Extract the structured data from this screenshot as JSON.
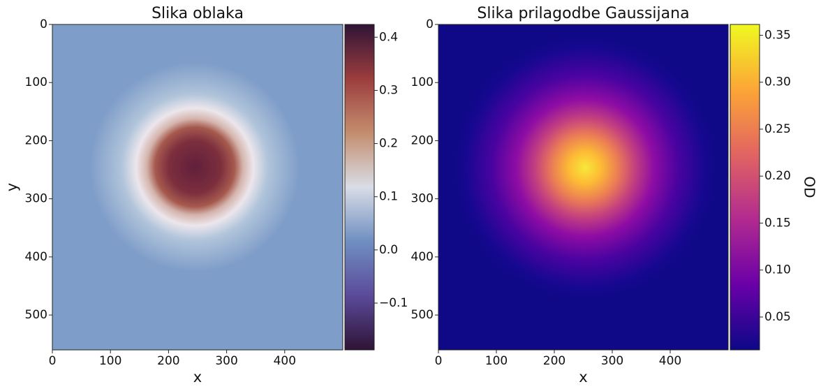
{
  "chart_data": [
    {
      "type": "heatmap",
      "title": "Slika oblaka",
      "xlabel": "x",
      "ylabel": "y",
      "xlim": [
        0,
        500
      ],
      "ylim": [
        560,
        0
      ],
      "xticks": [
        0,
        100,
        200,
        300,
        400
      ],
      "yticks": [
        0,
        100,
        200,
        300,
        400,
        500
      ],
      "colormap": "twilight_shifted",
      "colors": [
        "#2f1436",
        "#5b4a9a",
        "#6f8fc1",
        "#d9dde6",
        "#c48d6f",
        "#9c3d3e",
        "#2f1436"
      ],
      "clim": [
        -0.188,
        0.424
      ],
      "cticks": [
        {
          "value": -0.1,
          "label": "−0.1"
        },
        {
          "value": 0,
          "label": "0.0"
        },
        0.1,
        0.2,
        0.3,
        0.4
      ]
    },
    {
      "type": "heatmap",
      "title": "Slika prilagodbe Gaussijana",
      "xlabel": "x",
      "colorbar_label": "OD",
      "xlim": [
        0,
        500
      ],
      "ylim": [
        560,
        0
      ],
      "xticks": [
        0,
        100,
        200,
        300,
        400
      ],
      "yticks": [
        0,
        100,
        200,
        300,
        400,
        500
      ],
      "colormap": "plasma",
      "colors": [
        "#0d0887",
        "#6a00a8",
        "#b12a90",
        "#e16462",
        "#fca636",
        "#f0f921"
      ],
      "clim": [
        0.015,
        0.3615
      ],
      "cticks": [
        0.05,
        {
          "value": 0.1,
          "label": "0.10"
        },
        0.15,
        {
          "value": 0.2,
          "label": "0.20"
        },
        0.25,
        {
          "value": 0.3,
          "label": "0.30"
        },
        0.35
      ]
    }
  ]
}
